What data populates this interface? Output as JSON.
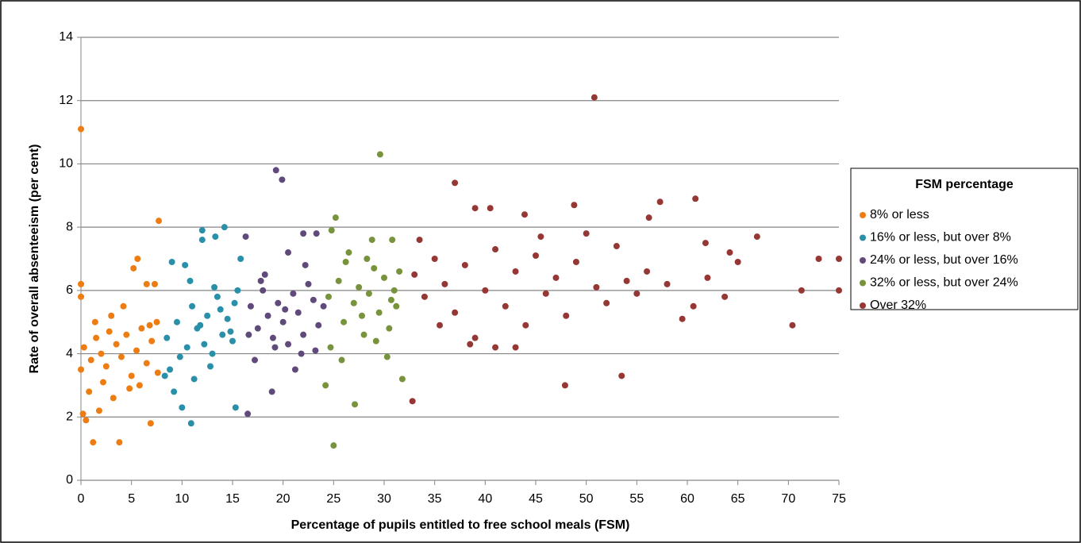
{
  "chart_data": {
    "type": "scatter",
    "xlabel": "Percentage of pupils entitled to free school meals (FSM)",
    "ylabel": "Rate of overall absenteeism (per cent)",
    "legend_title": "FSM percentage",
    "legend": "right",
    "grid": true,
    "xlim": [
      0,
      75
    ],
    "xticks": [
      0,
      5,
      10,
      15,
      20,
      25,
      30,
      35,
      40,
      45,
      50,
      55,
      60,
      65,
      70,
      75
    ],
    "ylim": [
      0,
      14
    ],
    "yticks": [
      0,
      2,
      4,
      6,
      8,
      10,
      12,
      14
    ],
    "series": [
      {
        "name": "8% or less",
        "color": "#ed7d12",
        "x": [
          0,
          0,
          0,
          0,
          0.2,
          0.5,
          1.2,
          3.8,
          6.9,
          1.8,
          5.2,
          5.6,
          6.5,
          7.3,
          7.7,
          0.3,
          1,
          1.5,
          2,
          2.5,
          3,
          3.5,
          4,
          4.5,
          5,
          5.5,
          6,
          6.5,
          7,
          7.5,
          0.8,
          2.2,
          3.2,
          4.2,
          5.8,
          6.8,
          7.6,
          1.4,
          2.8,
          4.8
        ],
        "y": [
          11.1,
          6.2,
          5.8,
          3.5,
          2.1,
          1.9,
          1.2,
          1.2,
          1.8,
          2.2,
          6.7,
          7.0,
          6.2,
          6.2,
          8.2,
          4.2,
          3.8,
          4.5,
          4.0,
          3.6,
          5.2,
          4.3,
          3.9,
          4.6,
          3.3,
          4.1,
          4.8,
          3.7,
          4.4,
          5.0,
          2.8,
          3.1,
          2.6,
          5.5,
          3.0,
          4.9,
          3.4,
          5.0,
          4.7,
          2.9
        ]
      },
      {
        "name": "16% or less, but over 8%",
        "color": "#2a8fa8",
        "x": [
          10.9,
          10,
          15.3,
          12,
          14.2,
          13.3,
          9,
          10.3,
          15.8,
          12,
          8.5,
          9.5,
          10.5,
          11,
          11.5,
          12.5,
          13,
          13.5,
          14,
          14.5,
          15,
          15.5,
          8.8,
          9.8,
          10.8,
          11.8,
          12.8,
          13.8,
          14.8,
          9.2,
          11.2,
          13.2,
          15.2,
          8.3,
          12.2
        ],
        "y": [
          1.8,
          2.3,
          2.3,
          7.9,
          8.0,
          7.7,
          6.9,
          6.8,
          7.0,
          7.6,
          4.5,
          5.0,
          4.2,
          5.5,
          4.8,
          5.2,
          4.0,
          5.8,
          4.6,
          5.1,
          4.4,
          6.0,
          3.5,
          3.9,
          6.3,
          4.9,
          3.6,
          5.4,
          4.7,
          2.8,
          3.2,
          6.1,
          5.6,
          3.3,
          4.3
        ]
      },
      {
        "name": "24% or less, but over 16%",
        "color": "#604a7b",
        "x": [
          19.3,
          19.9,
          16.5,
          18.9,
          22,
          16.3,
          23.3,
          20.5,
          16.8,
          17.5,
          18,
          18.5,
          19,
          19.5,
          20,
          20.5,
          21,
          21.5,
          22,
          22.5,
          23,
          23.5,
          17.2,
          18.2,
          19.2,
          20.2,
          21.2,
          22.2,
          23.2,
          17.8,
          21.8,
          16.6,
          24
        ],
        "y": [
          9.8,
          9.5,
          2.1,
          2.8,
          7.8,
          7.7,
          7.8,
          7.2,
          5.5,
          4.8,
          6.0,
          5.2,
          4.5,
          5.6,
          5.0,
          4.3,
          5.9,
          5.3,
          4.6,
          6.2,
          5.7,
          4.9,
          3.8,
          6.5,
          4.2,
          5.4,
          3.5,
          6.8,
          4.1,
          6.3,
          4.0,
          4.6,
          5.5
        ]
      },
      {
        "name": "32% or less, but over 24%",
        "color": "#77933c",
        "x": [
          29.6,
          25,
          27.1,
          24.2,
          25.2,
          24.8,
          30.8,
          31.8,
          30.3,
          28.8,
          24.5,
          25.5,
          26,
          26.5,
          27,
          27.5,
          28,
          28.5,
          29,
          29.5,
          30,
          30.5,
          31,
          31.5,
          24.7,
          26.2,
          27.8,
          29.2,
          30.7,
          25.8,
          28.3,
          31.2
        ],
        "y": [
          10.3,
          1.1,
          2.4,
          3.0,
          8.3,
          7.9,
          7.6,
          3.2,
          3.9,
          7.6,
          5.8,
          6.3,
          5.0,
          7.2,
          5.6,
          6.1,
          4.6,
          5.9,
          6.7,
          5.3,
          6.4,
          4.8,
          6.0,
          6.6,
          4.2,
          6.9,
          5.2,
          4.4,
          5.7,
          3.8,
          7.0,
          5.5
        ]
      },
      {
        "name": "Over 32%",
        "color": "#953735",
        "x": [
          50.8,
          37,
          60.8,
          57.3,
          48.8,
          39,
          40.5,
          47.9,
          53.5,
          32.8,
          70.4,
          75,
          75,
          73,
          71.3,
          66.9,
          64.2,
          63.7,
          59.5,
          60.6,
          61.8,
          56.2,
          50,
          43.9,
          33,
          34,
          35,
          36,
          37,
          38,
          39,
          40,
          41,
          42,
          43,
          44,
          45,
          46,
          47,
          48,
          49,
          51,
          52,
          53,
          54,
          55,
          56,
          58,
          62,
          65,
          35.5,
          41,
          43,
          38.5,
          33.5,
          45.5
        ],
        "y": [
          12.1,
          9.4,
          8.9,
          8.8,
          8.7,
          8.6,
          8.6,
          3.0,
          3.3,
          2.5,
          4.9,
          6.0,
          7.0,
          7.0,
          6.0,
          7.7,
          7.2,
          5.8,
          5.1,
          5.5,
          7.5,
          8.3,
          7.8,
          8.4,
          6.5,
          5.8,
          7.0,
          6.2,
          5.3,
          6.8,
          4.5,
          6.0,
          7.3,
          5.5,
          6.6,
          4.9,
          7.1,
          5.9,
          6.4,
          5.2,
          6.9,
          6.1,
          5.6,
          7.4,
          6.3,
          5.9,
          6.6,
          6.2,
          6.4,
          6.9,
          4.9,
          4.2,
          4.2,
          4.3,
          7.6,
          7.7
        ]
      }
    ]
  }
}
